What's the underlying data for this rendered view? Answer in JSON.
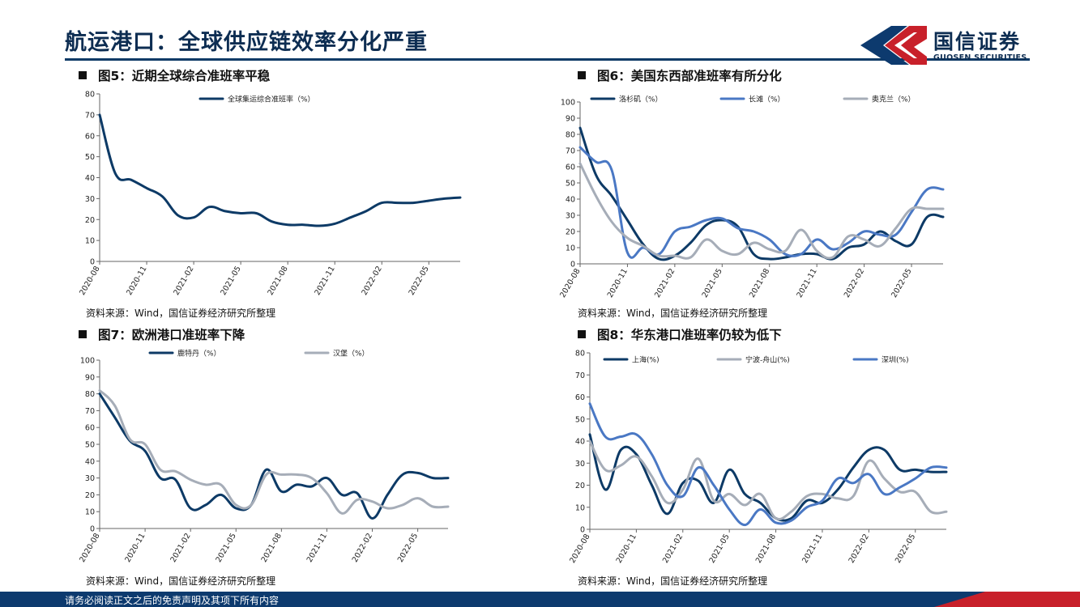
{
  "header": {
    "title": "航运港口：全球供应链效率分化严重",
    "logo_cn": "国信证券",
    "logo_en": "GUOSEN SECURITIES"
  },
  "figures": [
    {
      "title": "图5：近期全球综合准班率平稳",
      "source": "资料来源：Wind，国信证券经济研究所整理"
    },
    {
      "title": "图6：美国东西部准班率有所分化",
      "source": "资料来源：Wind，国信证券经济研究所整理"
    },
    {
      "title": "图7：欧洲港口准班率下降",
      "source": "资料来源：Wind，国信证券经济研究所整理"
    },
    {
      "title": "图8：华东港口准班率仍较为低下",
      "source": "资料来源：Wind，国信证券经济研究所整理"
    }
  ],
  "footer": {
    "text": "请务必阅读正文之后的免责声明及其项下所有内容"
  },
  "colors": {
    "dark_blue": "#0d3a66",
    "mid_blue": "#4a78c4",
    "grey": "#a6adb8",
    "red": "#c8202a"
  },
  "chart_data": [
    {
      "type": "line",
      "xticks": [
        "2020-08",
        "2020-11",
        "2021-02",
        "2021-05",
        "2021-08",
        "2021-11",
        "2022-02",
        "2022-05"
      ],
      "x_months": [
        0,
        1,
        2,
        3,
        4,
        5,
        6,
        7,
        8,
        9,
        10,
        11,
        12,
        13,
        14,
        15,
        16,
        17,
        18,
        19,
        20,
        21,
        22,
        23
      ],
      "ylim": [
        0,
        80
      ],
      "yticks": [
        0,
        10,
        20,
        30,
        40,
        50,
        60,
        70,
        80
      ],
      "series": [
        {
          "name": "全球集运综合准班率（%）",
          "color": "#0d3a66",
          "values": [
            70,
            42,
            39,
            35,
            31,
            22,
            21,
            26,
            24,
            23,
            23,
            19,
            17.5,
            17.5,
            17,
            18,
            21,
            24,
            28,
            28,
            28,
            29,
            30,
            30.5
          ]
        }
      ]
    },
    {
      "type": "line",
      "xticks": [
        "2020-08",
        "2020-11",
        "2021-02",
        "2021-05",
        "2021-08",
        "2021-11",
        "2022-02",
        "2022-05"
      ],
      "x_months": [
        0,
        1,
        2,
        3,
        4,
        5,
        6,
        7,
        8,
        9,
        10,
        11,
        12,
        13,
        14,
        15,
        16,
        17,
        18,
        19,
        20,
        21,
        22,
        23
      ],
      "ylim": [
        0,
        100
      ],
      "yticks": [
        0,
        10,
        20,
        30,
        40,
        50,
        60,
        70,
        80,
        90,
        100
      ],
      "series": [
        {
          "name": "洛杉矶（%）",
          "color": "#0d3a66",
          "values": [
            84,
            55,
            42,
            27,
            12,
            3,
            5,
            13,
            24,
            27,
            23,
            6,
            3,
            4,
            6,
            6,
            3,
            10,
            12,
            20,
            14,
            12,
            29,
            29
          ]
        },
        {
          "name": "长滩（%）",
          "color": "#4a78c4",
          "values": [
            72,
            63,
            58,
            7,
            10,
            6,
            20,
            23,
            27,
            28,
            22,
            20,
            15,
            6,
            6,
            15,
            9,
            13,
            20,
            18,
            18,
            32,
            46,
            46
          ]
        },
        {
          "name": "奥克兰（%）",
          "color": "#a6adb8",
          "values": [
            62,
            42,
            26,
            16,
            11,
            5,
            5,
            4,
            15,
            8,
            6,
            13,
            9,
            8,
            21,
            8,
            4,
            17,
            15,
            11,
            22,
            34,
            34,
            34
          ]
        }
      ]
    },
    {
      "type": "line",
      "xticks": [
        "2020-08",
        "2020-11",
        "2021-02",
        "2021-05",
        "2021-08",
        "2021-11",
        "2022-02",
        "2022-05"
      ],
      "x_months": [
        0,
        1,
        2,
        3,
        4,
        5,
        6,
        7,
        8,
        9,
        10,
        11,
        12,
        13,
        14,
        15,
        16,
        17,
        18,
        19,
        20,
        21,
        22,
        23
      ],
      "ylim": [
        0,
        100
      ],
      "yticks": [
        0,
        10,
        20,
        30,
        40,
        50,
        60,
        70,
        80,
        90,
        100
      ],
      "series": [
        {
          "name": "鹿特丹（%）",
          "color": "#0d3a66",
          "values": [
            80,
            66,
            52,
            46,
            30,
            29,
            12,
            14,
            20,
            12,
            14,
            35,
            22,
            26,
            25,
            30,
            20,
            21,
            6,
            20,
            32,
            33,
            30,
            30
          ]
        },
        {
          "name": "汉堡（%）",
          "color": "#a6adb8",
          "values": [
            82,
            73,
            53,
            50,
            35,
            34,
            29,
            26,
            26,
            14,
            14,
            32,
            32,
            32,
            30,
            21,
            9,
            17,
            16,
            12,
            14,
            18,
            13,
            13
          ]
        }
      ]
    },
    {
      "type": "line",
      "xticks": [
        "2020-08",
        "2020-11",
        "2021-02",
        "2021-05",
        "2021-08",
        "2021-11",
        "2022-02",
        "2022-05"
      ],
      "x_months": [
        0,
        1,
        2,
        3,
        4,
        5,
        6,
        7,
        8,
        9,
        10,
        11,
        12,
        13,
        14,
        15,
        16,
        17,
        18,
        19,
        20,
        21,
        22,
        23
      ],
      "ylim": [
        0,
        80
      ],
      "yticks": [
        0,
        10,
        20,
        30,
        40,
        50,
        60,
        70,
        80
      ],
      "series": [
        {
          "name": "上海(%)",
          "color": "#0d3a66",
          "values": [
            43,
            18,
            36,
            34,
            20,
            7,
            21,
            22,
            12,
            27,
            16,
            12,
            5,
            5,
            13,
            12,
            18,
            28,
            36,
            36,
            27,
            27,
            26,
            26
          ]
        },
        {
          "name": "宁波-舟山(%)",
          "color": "#a6adb8",
          "values": [
            40,
            27,
            29,
            33,
            24,
            12,
            18,
            32,
            13,
            16,
            11,
            16,
            5,
            8,
            15,
            16,
            14,
            15,
            31,
            23,
            17,
            17,
            8,
            8
          ]
        },
        {
          "name": "深圳(%)",
          "color": "#4a78c4",
          "values": [
            57,
            42,
            42,
            43,
            34,
            20,
            15,
            28,
            20,
            9,
            2,
            9,
            3,
            4,
            10,
            13,
            23,
            21,
            25,
            16,
            19,
            23,
            28,
            28
          ]
        }
      ]
    }
  ]
}
